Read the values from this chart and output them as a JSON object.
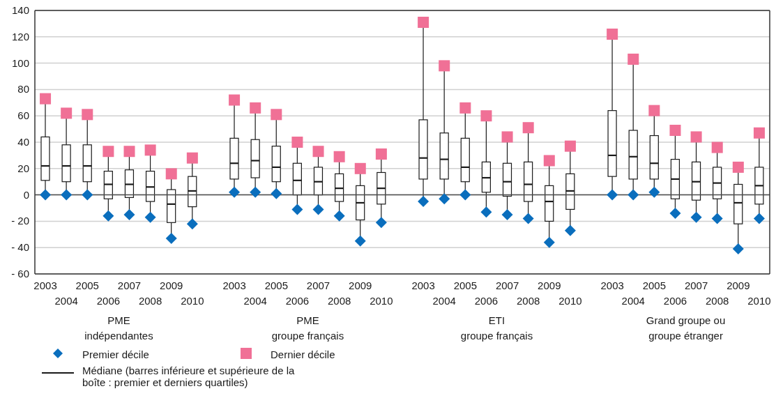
{
  "chart_data": {
    "type": "box",
    "categories": [
      "2003",
      "2004",
      "2005",
      "2006",
      "2007",
      "2008",
      "2009",
      "2010",
      null,
      "2003",
      "2004",
      "2005",
      "2006",
      "2007",
      "2008",
      "2009",
      "2010",
      null,
      "2003",
      "2004",
      "2005",
      "2006",
      "2007",
      "2008",
      "2009",
      "2010",
      null,
      "2003",
      "2004",
      "2005",
      "2006",
      "2007",
      "2008",
      "2009",
      "2010"
    ],
    "ylim": [
      -60,
      140
    ],
    "yticks": [
      {
        "value": -60,
        "label": "- 60"
      },
      {
        "value": -40,
        "label": "- 40"
      },
      {
        "value": -20,
        "label": "- 20"
      },
      0,
      20,
      40,
      60,
      80,
      100,
      120,
      140
    ],
    "grid": "y",
    "legend": "bottom left",
    "annotations": [
      "PME\nindépendantes",
      "PME\ngroupe français",
      "ETI\ngroupe français",
      "Grand groupe ou\ngroupe étranger"
    ],
    "ref_lines": [
      {
        "axis": "y",
        "value": 0,
        "color": "#4d4d4d"
      }
    ],
    "series": [
      {
        "name": "Médiane (barres inférieure et supérieure de la boîte : premier et derniers quartiles)",
        "color": "#1a1a1a",
        "boxes": [
          {
            "low": 0,
            "q1": 11,
            "median": 22,
            "q3": 44,
            "high": 73
          },
          {
            "low": 0,
            "q1": 10,
            "median": 22,
            "q3": 38,
            "high": 62
          },
          {
            "low": 0,
            "q1": 10,
            "median": 22,
            "q3": 38,
            "high": 61
          },
          {
            "low": -16,
            "q1": -3,
            "median": 8,
            "q3": 18,
            "high": 33
          },
          {
            "low": -15,
            "q1": -2,
            "median": 8,
            "q3": 19,
            "high": 33
          },
          {
            "low": -17,
            "q1": -5,
            "median": 6,
            "q3": 18,
            "high": 34
          },
          {
            "low": -33,
            "q1": -21,
            "median": -7,
            "q3": 4,
            "high": 16
          },
          {
            "low": -22,
            "q1": -9,
            "median": 3,
            "q3": 14,
            "high": 28
          },
          null,
          {
            "low": 2,
            "q1": 12,
            "median": 24,
            "q3": 43,
            "high": 72
          },
          {
            "low": 2,
            "q1": 13,
            "median": 26,
            "q3": 42,
            "high": 66
          },
          {
            "low": 1,
            "q1": 10,
            "median": 21,
            "q3": 37,
            "high": 61
          },
          {
            "low": -11,
            "q1": 0,
            "median": 11,
            "q3": 24,
            "high": 40
          },
          {
            "low": -11,
            "q1": 0,
            "median": 10,
            "q3": 21,
            "high": 33
          },
          {
            "low": -16,
            "q1": -5,
            "median": 5,
            "q3": 16,
            "high": 29
          },
          {
            "low": -35,
            "q1": -19,
            "median": -6,
            "q3": 7,
            "high": 20
          },
          {
            "low": -21,
            "q1": -7,
            "median": 5,
            "q3": 17,
            "high": 31
          },
          null,
          {
            "low": -5,
            "q1": 12,
            "median": 28,
            "q3": 57,
            "high": 131
          },
          {
            "low": -3,
            "q1": 12,
            "median": 27,
            "q3": 47,
            "high": 98
          },
          {
            "low": 0,
            "q1": 10,
            "median": 21,
            "q3": 43,
            "high": 66
          },
          {
            "low": -13,
            "q1": 2,
            "median": 13,
            "q3": 25,
            "high": 60
          },
          {
            "low": -15,
            "q1": -1,
            "median": 10,
            "q3": 24,
            "high": 44
          },
          {
            "low": -18,
            "q1": -5,
            "median": 8,
            "q3": 25,
            "high": 51
          },
          {
            "low": -36,
            "q1": -20,
            "median": -5,
            "q3": 7,
            "high": 26
          },
          {
            "low": -27,
            "q1": -11,
            "median": 3,
            "q3": 16,
            "high": 37
          },
          null,
          {
            "low": 0,
            "q1": 14,
            "median": 30,
            "q3": 64,
            "high": 122
          },
          {
            "low": 0,
            "q1": 12,
            "median": 29,
            "q3": 49,
            "high": 103
          },
          {
            "low": 2,
            "q1": 12,
            "median": 24,
            "q3": 45,
            "high": 64
          },
          {
            "low": -14,
            "q1": -3,
            "median": 12,
            "q3": 27,
            "high": 49
          },
          {
            "low": -17,
            "q1": -4,
            "median": 10,
            "q3": 25,
            "high": 44
          },
          {
            "low": -18,
            "q1": -3,
            "median": 9,
            "q3": 21,
            "high": 36
          },
          {
            "low": -41,
            "q1": -22,
            "median": -6,
            "q3": 8,
            "high": 21
          },
          {
            "low": -18,
            "q1": -7,
            "median": 7,
            "q3": 21,
            "high": 47
          }
        ]
      },
      {
        "name": "Premier décile",
        "type": "scatter",
        "marker": "diamond",
        "color": "#0a6ebd",
        "values": [
          0,
          0,
          0,
          -16,
          -15,
          -17,
          -33,
          -22,
          null,
          2,
          2,
          1,
          -11,
          -11,
          -16,
          -35,
          -21,
          null,
          -5,
          -3,
          0,
          -13,
          -15,
          -18,
          -36,
          -27,
          null,
          0,
          0,
          2,
          -14,
          -17,
          -18,
          -41,
          -18
        ]
      },
      {
        "name": "Dernier décile",
        "type": "scatter",
        "marker": "square",
        "color": "#f07096",
        "values": [
          73,
          62,
          61,
          33,
          33,
          34,
          16,
          28,
          null,
          72,
          66,
          61,
          40,
          33,
          29,
          20,
          31,
          null,
          131,
          98,
          66,
          60,
          44,
          51,
          26,
          37,
          null,
          122,
          103,
          64,
          49,
          44,
          36,
          21,
          47
        ]
      }
    ]
  }
}
